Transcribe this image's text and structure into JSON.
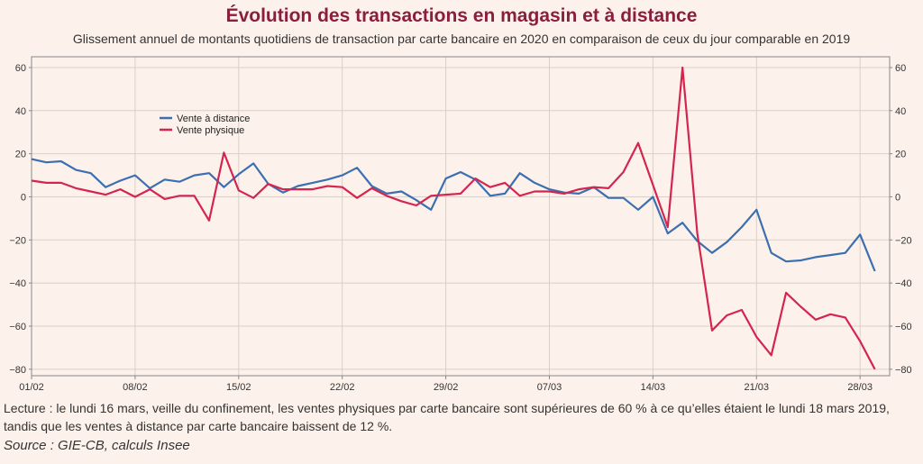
{
  "title": "Évolution des transactions en magasin et à distance",
  "subtitle": "Glissement annuel de montants quotidiens de transaction par carte bancaire en 2020 en comparaison de ceux du jour comparable en 2019",
  "note": "Lecture : le lundi 16 mars, veille du confinement, les ventes physiques par carte bancaire sont supérieures de 60 % à ce qu’elles étaient le lundi 18 mars 2019, tandis que les ventes à distance par carte bancaire baissent de 12 %.",
  "source": "Source : GIE-CB, calculs Insee",
  "chart_data": {
    "type": "line",
    "x_tick_labels": [
      "01/02",
      "08/02",
      "15/02",
      "22/02",
      "29/02",
      "07/03",
      "14/03",
      "21/03",
      "28/03"
    ],
    "y_ticks": [
      -80,
      -60,
      -40,
      -20,
      0,
      20,
      40,
      60
    ],
    "ylim": [
      -83,
      65
    ],
    "grid": true,
    "legend_position": "top-left",
    "x_start": 1,
    "x_end": 59,
    "series": [
      {
        "name": "Vente à distance",
        "color": "#3b6fb0",
        "values": [
          [
            1,
            17.5
          ],
          [
            2,
            16
          ],
          [
            3,
            16.5
          ],
          [
            4,
            12.5
          ],
          [
            5,
            11
          ],
          [
            6,
            4.5
          ],
          [
            7,
            7.5
          ],
          [
            8,
            10
          ],
          [
            9,
            4
          ],
          [
            10,
            8
          ],
          [
            11,
            7
          ],
          [
            12,
            10
          ],
          [
            13,
            11
          ],
          [
            14,
            4.5
          ],
          [
            15,
            10.5
          ],
          [
            16,
            15.5
          ],
          [
            17,
            6
          ],
          [
            18,
            2
          ],
          [
            19,
            5
          ],
          [
            20,
            6.5
          ],
          [
            21,
            8
          ],
          [
            22,
            10
          ],
          [
            23,
            13.5
          ],
          [
            24,
            5
          ],
          [
            25,
            1.5
          ],
          [
            26,
            2.5
          ],
          [
            27,
            -1.5
          ],
          [
            28,
            -6
          ],
          [
            29,
            8.5
          ],
          [
            30,
            11.5
          ],
          [
            31,
            8
          ],
          [
            32,
            0.5
          ],
          [
            33,
            1.5
          ],
          [
            34,
            11
          ],
          [
            35,
            6.5
          ],
          [
            36,
            3.5
          ],
          [
            37,
            2
          ],
          [
            38,
            1.5
          ],
          [
            39,
            4.5
          ],
          [
            40,
            -0.5
          ],
          [
            41,
            -0.5
          ],
          [
            42,
            -6
          ],
          [
            43,
            0
          ],
          [
            44,
            -17
          ],
          [
            45,
            -12
          ],
          [
            46,
            -20.5
          ],
          [
            47,
            -26
          ],
          [
            48,
            -21
          ],
          [
            49,
            -14
          ],
          [
            50,
            -6
          ],
          [
            51,
            -26
          ],
          [
            52,
            -30
          ],
          [
            53,
            -29.5
          ],
          [
            54,
            -28
          ],
          [
            55,
            -27
          ],
          [
            56,
            -26
          ],
          [
            57,
            -17.5
          ],
          [
            58,
            -34.5
          ]
        ]
      },
      {
        "name": "Vente physique",
        "color": "#d4254f",
        "values": [
          [
            1,
            7.5
          ],
          [
            2,
            6.5
          ],
          [
            3,
            6.5
          ],
          [
            4,
            4
          ],
          [
            5,
            2.5
          ],
          [
            6,
            1
          ],
          [
            7,
            3.5
          ],
          [
            8,
            0
          ],
          [
            9,
            3.5
          ],
          [
            10,
            -1
          ],
          [
            11,
            0.5
          ],
          [
            12,
            0.5
          ],
          [
            13,
            -11
          ],
          [
            14,
            20.5
          ],
          [
            15,
            3
          ],
          [
            16,
            -0.5
          ],
          [
            17,
            6
          ],
          [
            18,
            3.5
          ],
          [
            19,
            3.5
          ],
          [
            20,
            3.5
          ],
          [
            21,
            5
          ],
          [
            22,
            4.5
          ],
          [
            23,
            -0.5
          ],
          [
            24,
            4
          ],
          [
            25,
            0.5
          ],
          [
            26,
            -2
          ],
          [
            27,
            -4
          ],
          [
            28,
            0.5
          ],
          [
            29,
            1
          ],
          [
            30,
            1.5
          ],
          [
            31,
            8.5
          ],
          [
            32,
            4.5
          ],
          [
            33,
            6.5
          ],
          [
            34,
            0.5
          ],
          [
            35,
            2.5
          ],
          [
            36,
            2.5
          ],
          [
            37,
            1.5
          ],
          [
            38,
            3.5
          ],
          [
            39,
            4.5
          ],
          [
            40,
            4
          ],
          [
            41,
            11.5
          ],
          [
            42,
            25
          ],
          [
            43,
            5.5
          ],
          [
            44,
            -14
          ],
          [
            45,
            60
          ],
          [
            46,
            -17
          ],
          [
            47,
            -62
          ],
          [
            48,
            -55
          ],
          [
            49,
            -52.5
          ],
          [
            50,
            -65
          ],
          [
            51,
            -73.5
          ],
          [
            52,
            -44.5
          ],
          [
            53,
            -51
          ],
          [
            54,
            -57
          ],
          [
            55,
            -54.5
          ],
          [
            56,
            -56
          ],
          [
            57,
            -67
          ],
          [
            58,
            -80
          ]
        ]
      }
    ]
  }
}
